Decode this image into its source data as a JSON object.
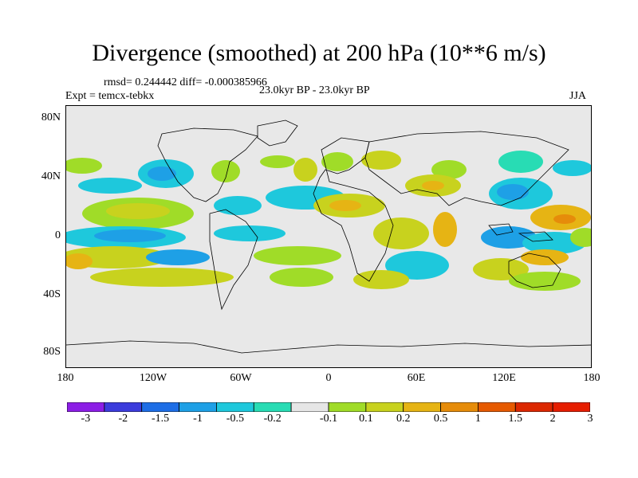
{
  "title": "Divergence (smoothed) at 200 hPa (10**6 m/s)",
  "stats": "rmsd= 0.244442  diff= -0.000385966",
  "expt": "Expt = temcx-tebkx",
  "period": "23.0kyr BP - 23.0kyr BP",
  "season": "JJA",
  "axes": {
    "lat_ticks": [
      "80N",
      "40N",
      "0",
      "40S",
      "80S"
    ],
    "lon_ticks": [
      "180",
      "120W",
      "60W",
      "0",
      "60E",
      "120E",
      "180"
    ]
  },
  "colorbar": {
    "colors": [
      "#8c1ee6",
      "#3c3cdc",
      "#1e6ee6",
      "#1ea0e6",
      "#1ec8dc",
      "#28dcb4",
      "#e6e6e6",
      "#a0dc28",
      "#c8d21e",
      "#e6b414",
      "#e68c0a",
      "#e65a00",
      "#dc2800",
      "#e61e00"
    ],
    "labels": [
      "-3",
      "-2",
      "-1.5",
      "-1",
      "-0.5",
      "-0.2",
      "-0.1",
      "0.1",
      "0.2",
      "0.5",
      "1",
      "1.5",
      "2",
      "3"
    ]
  },
  "colors": {
    "background": "#e8e8e8",
    "coast": "#000000"
  }
}
